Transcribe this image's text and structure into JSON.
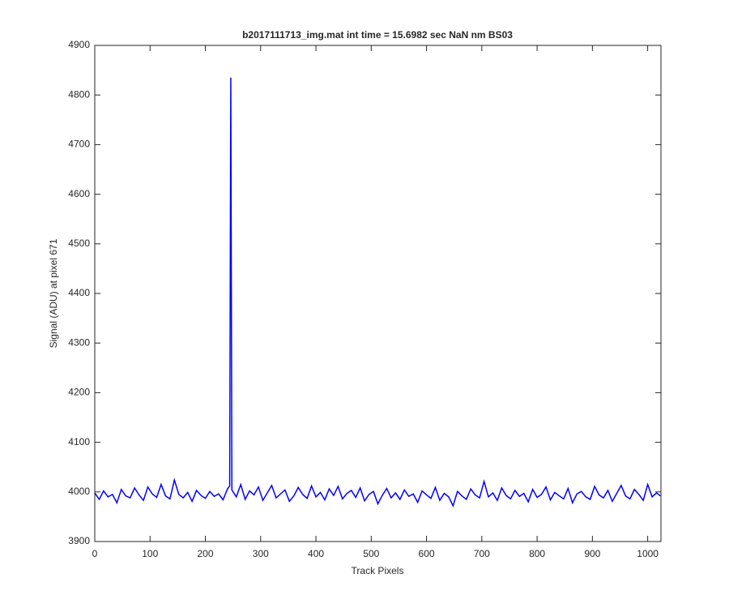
{
  "chart_data": {
    "type": "line",
    "title": "b2017111713_img.mat int time = 15.6982 sec  NaN nm BS03",
    "x_label": "Track Pixels",
    "y_label": "Signal (ADU) at pixel 671",
    "xlim": [
      0,
      1024
    ],
    "ylim": [
      3900,
      4900
    ],
    "xticks": [
      0,
      100,
      200,
      300,
      400,
      500,
      600,
      700,
      800,
      900,
      1000
    ],
    "yticks": [
      3900,
      4000,
      4100,
      4200,
      4300,
      4400,
      4500,
      4600,
      4700,
      4800,
      4900
    ],
    "x": [
      0,
      8,
      16,
      24,
      32,
      40,
      48,
      56,
      64,
      72,
      80,
      88,
      96,
      104,
      112,
      120,
      128,
      136,
      144,
      152,
      160,
      168,
      176,
      184,
      192,
      200,
      208,
      216,
      224,
      232,
      240,
      244,
      246,
      248,
      256,
      264,
      272,
      280,
      288,
      296,
      304,
      312,
      320,
      328,
      336,
      344,
      352,
      360,
      368,
      376,
      384,
      392,
      400,
      408,
      416,
      424,
      432,
      440,
      448,
      456,
      464,
      472,
      480,
      488,
      496,
      504,
      512,
      520,
      528,
      536,
      544,
      552,
      560,
      568,
      576,
      584,
      592,
      600,
      608,
      616,
      624,
      632,
      640,
      648,
      656,
      664,
      672,
      680,
      688,
      696,
      704,
      712,
      720,
      728,
      736,
      744,
      752,
      760,
      768,
      776,
      784,
      792,
      800,
      808,
      816,
      824,
      832,
      840,
      848,
      856,
      864,
      872,
      880,
      888,
      896,
      904,
      912,
      920,
      928,
      936,
      944,
      952,
      960,
      968,
      976,
      984,
      992,
      1000,
      1008,
      1016,
      1023
    ],
    "series": [
      {
        "color": "#0000ff",
        "values": [
          3998,
          3985,
          4002,
          3990,
          3995,
          3978,
          4005,
          3992,
          3988,
          4008,
          3994,
          3983,
          4010,
          3996,
          3989,
          4015,
          3992,
          3986,
          4024,
          3995,
          3988,
          3999,
          3981,
          4003,
          3993,
          3987,
          4001,
          3991,
          3996,
          3984,
          4006,
          4012,
          4835,
          4004,
          3990,
          4015,
          3985,
          4002,
          3994,
          4010,
          3983,
          3998,
          4013,
          3988,
          3996,
          4004,
          3981,
          3992,
          4009,
          3995,
          3987,
          4012,
          3990,
          3999,
          3984,
          4006,
          3993,
          4011,
          3986,
          3997,
          4003,
          3989,
          4008,
          3982,
          3995,
          4001,
          3976,
          3993,
          4007,
          3988,
          3998,
          3985,
          4004,
          3991,
          3996,
          3979,
          4002,
          3994,
          3987,
          4009,
          3983,
          3997,
          3990,
          3972,
          4001,
          3992,
          3985,
          4006,
          3994,
          3988,
          4021,
          3990,
          3998,
          3983,
          4008,
          3993,
          3986,
          4003,
          3991,
          3997,
          3980,
          4005,
          3989,
          3995,
          4010,
          3984,
          3999,
          3992,
          3986,
          4007,
          3978,
          3996,
          4001,
          3990,
          3985,
          4011,
          3994,
          3988,
          4003,
          3981,
          3997,
          4013,
          3992,
          3986,
          4005,
          3995,
          3983,
          4015,
          3990,
          3998,
          3992
        ]
      }
    ]
  }
}
